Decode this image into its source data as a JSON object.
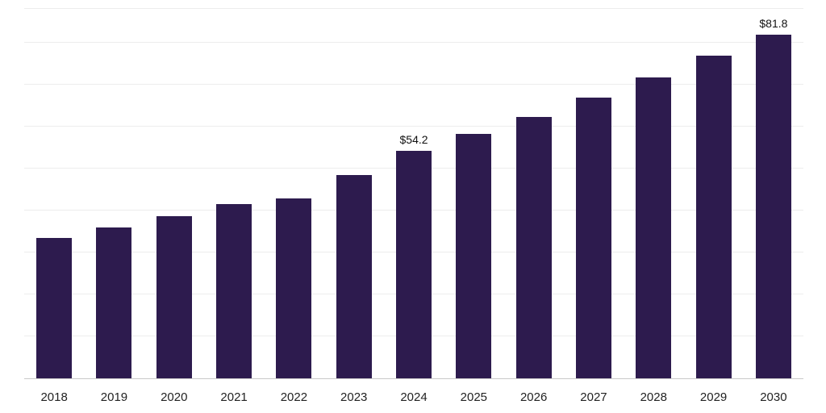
{
  "chart_data": {
    "type": "bar",
    "title": "",
    "xlabel": "",
    "ylabel": "",
    "categories": [
      "2018",
      "2019",
      "2020",
      "2021",
      "2022",
      "2023",
      "2024",
      "2025",
      "2026",
      "2027",
      "2028",
      "2029",
      "2030"
    ],
    "values": [
      33.4,
      35.9,
      38.7,
      41.6,
      42.9,
      48.4,
      54.2,
      58.3,
      62.3,
      66.9,
      71.7,
      76.8,
      81.8
    ],
    "data_labels": [
      "",
      "",
      "",
      "",
      "",
      "",
      "$54.2",
      "",
      "",
      "",
      "",
      "",
      "$81.8"
    ],
    "bar_color": "#2d1b4e",
    "gridline_color": "#ededed",
    "axis_line_color": "#c9c9c9",
    "tick_label_color": "#222222",
    "ylim": [
      0,
      88
    ],
    "gridline_step": 10,
    "grid": "horizontal",
    "legend_position": "none"
  }
}
